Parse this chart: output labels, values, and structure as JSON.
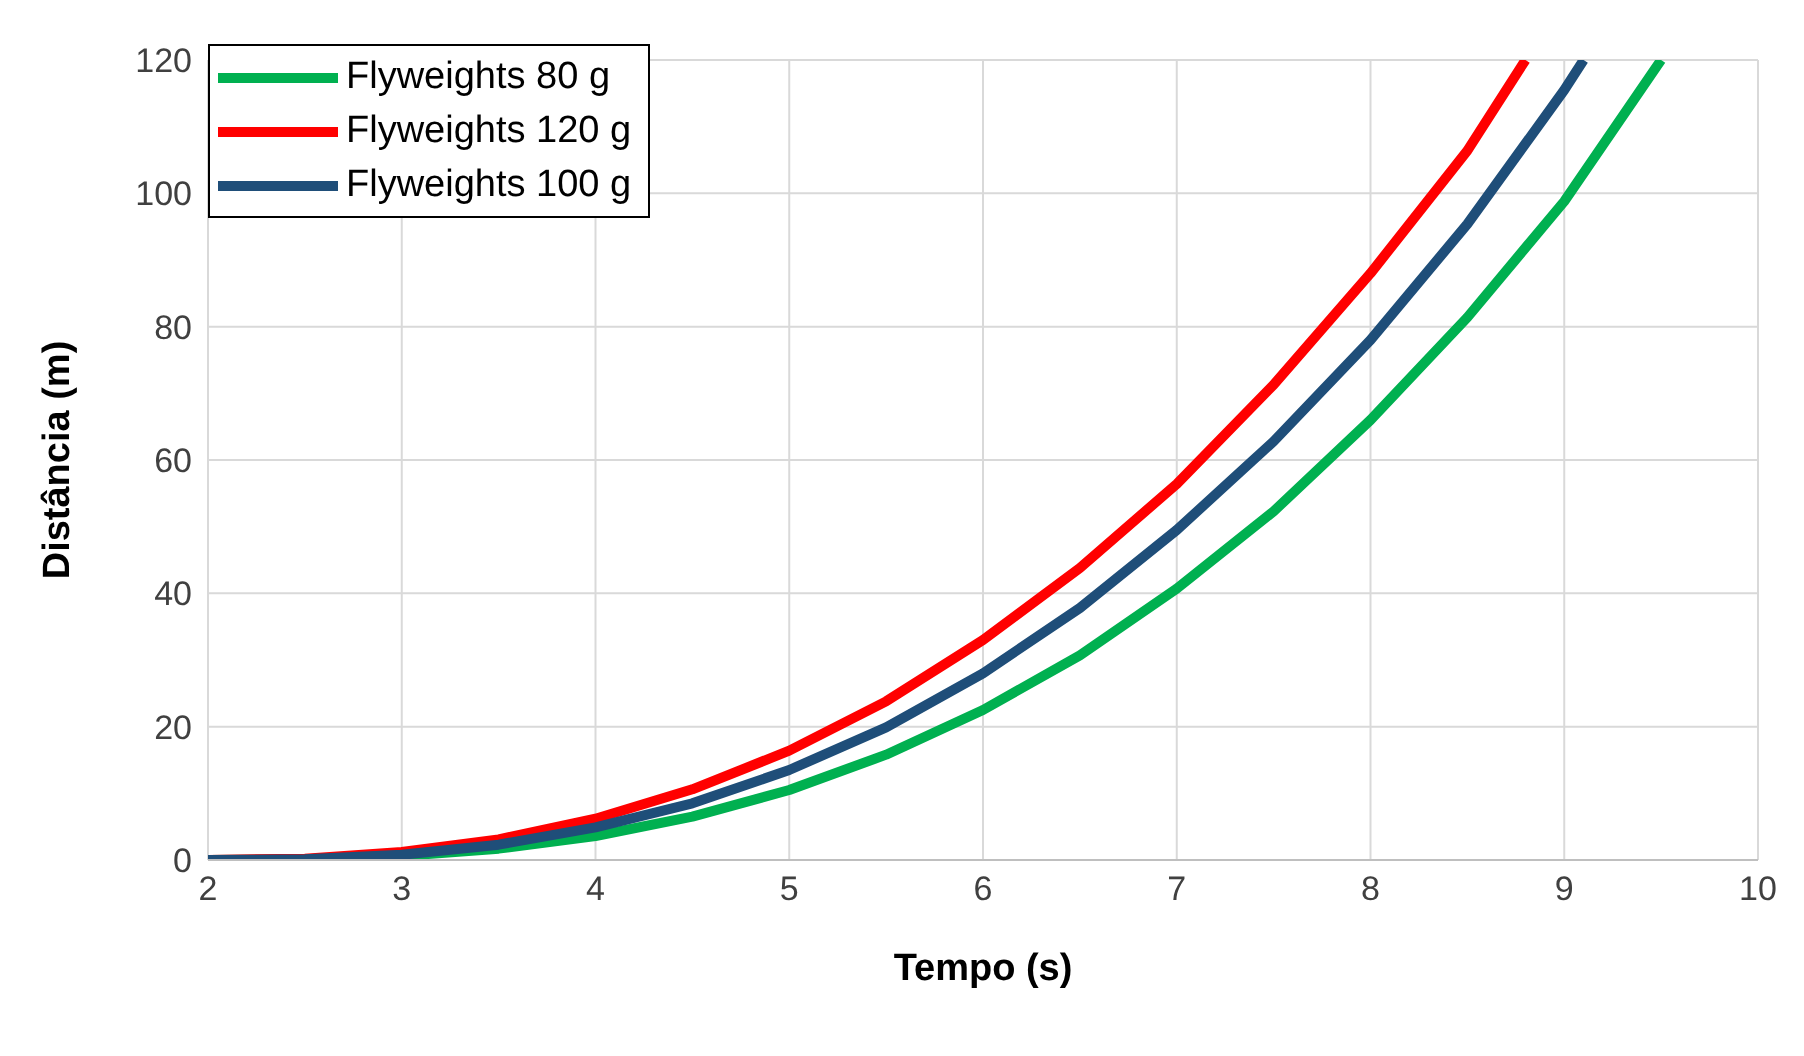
{
  "chart_data": {
    "type": "line",
    "xlabel": "Tempo (s)",
    "ylabel": "Distância (m)",
    "xlim": [
      2,
      10
    ],
    "xticks": [
      2,
      3,
      4,
      5,
      6,
      7,
      8,
      9,
      10
    ],
    "ylim": [
      0,
      120
    ],
    "yticks": [
      0,
      20,
      40,
      60,
      80,
      100,
      120
    ],
    "grid": true,
    "legend": "top left",
    "marker": "none",
    "line_style": "solid",
    "series": [
      {
        "name": "Flyweights 80 g",
        "color": "#00b050",
        "x": [
          2,
          2.5,
          3,
          3.5,
          4,
          4.5,
          5,
          5.5,
          6,
          6.5,
          7,
          7.5,
          8,
          8.5,
          9,
          9.5
        ],
        "values": [
          0,
          0.1,
          0.6,
          1.7,
          3.6,
          6.5,
          10.5,
          15.8,
          22.5,
          30.7,
          40.7,
          52.3,
          66,
          81.4,
          98.8,
          120
        ]
      },
      {
        "name": "Flyweights 120 g",
        "color": "#ff0000",
        "x": [
          2,
          2.5,
          3,
          3.5,
          4,
          4.5,
          5,
          5.5,
          6,
          6.5,
          7,
          7.5,
          8,
          8.5,
          8.8
        ],
        "values": [
          0,
          0.2,
          1.2,
          3.1,
          6.2,
          10.6,
          16.4,
          23.8,
          33,
          43.8,
          56.4,
          71.3,
          88,
          106.4,
          120
        ]
      },
      {
        "name": "Flyweights 100 g",
        "color": "#1f4e79",
        "x": [
          2,
          2.5,
          3,
          3.5,
          4,
          4.5,
          5,
          5.5,
          6,
          6.5,
          7,
          7.5,
          8,
          8.5,
          9,
          9.1
        ],
        "values": [
          0,
          0.1,
          0.8,
          2.3,
          4.9,
          8.5,
          13.5,
          19.9,
          28,
          37.8,
          49.5,
          62.8,
          78,
          95.4,
          115.5,
          120
        ]
      }
    ]
  }
}
